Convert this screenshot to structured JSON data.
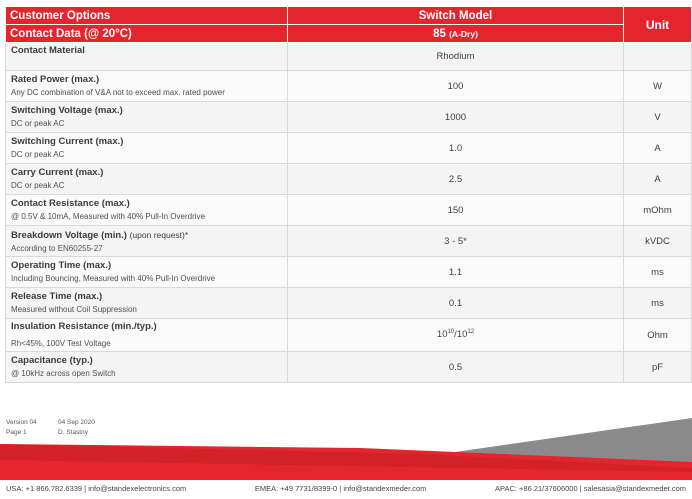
{
  "header": {
    "customer_options": "Customer Options",
    "switch_model": "Switch Model",
    "unit": "Unit",
    "contact_data": "Contact Data (@ 20°C)",
    "model_number": "85",
    "model_type": "(A-Dry)"
  },
  "rows": [
    {
      "name": "Contact Material",
      "note": "",
      "desc": "",
      "value": "Rhodium",
      "unit": ""
    },
    {
      "name": "Rated Power (max.)",
      "note": "",
      "desc": "Any DC combination of V&A not to exceed max. rated power",
      "value": "100",
      "unit": "W"
    },
    {
      "name": "Switching Voltage (max.)",
      "note": "",
      "desc": "DC or peak AC",
      "value": "1000",
      "unit": "V"
    },
    {
      "name": "Switching Current (max.)",
      "note": "",
      "desc": "DC or peak AC",
      "value": "1.0",
      "unit": "A"
    },
    {
      "name": "Carry Current (max.)",
      "note": "",
      "desc": "DC or peak AC",
      "value": "2.5",
      "unit": "A"
    },
    {
      "name": "Contact Resistance (max.)",
      "note": "",
      "desc": "@ 0.5V & 10mA, Measured with 40% Pull-In Overdrive",
      "value": "150",
      "unit": "mOhm"
    },
    {
      "name": "Breakdown Voltage (min.)",
      "note": "(upon request)*",
      "desc": "According to EN60255-27",
      "value": "3 - 5*",
      "unit": "kVDC"
    },
    {
      "name": "Operating Time (max.)",
      "note": "",
      "desc": "Including Bouncing, Measured with 40% Pull-In Overdrive",
      "value": "1.1",
      "unit": "ms"
    },
    {
      "name": "Release Time (max.)",
      "note": "",
      "desc": "Measured without Coil Suppression",
      "value": "0.1",
      "unit": "ms"
    },
    {
      "name": "Insulation Resistance (min./typ.)",
      "note": "",
      "desc": "Rh<45%, 100V Test Voltage",
      "value_base1": "10",
      "value_exp1": "10",
      "value_sep": "/",
      "value_base2": "10",
      "value_exp2": "12",
      "unit": "Ohm"
    },
    {
      "name": "Capacitance (typ.)",
      "note": "",
      "desc": "@ 10kHz across open Switch",
      "value": "0.5",
      "unit": "pF"
    }
  ],
  "footer": {
    "version_label": "Version 04",
    "version_date": "04 Sep 2020",
    "page_label": "Page 1",
    "author": "D. Stastny",
    "usa": "USA: +1 866.782.6339 | info@standexelectronics.com",
    "emea": "EMEA: +49 7731/8399-0 | info@standexmeder.com",
    "apac": "APAC: +86 21/37606000 | salesasia@standexmeder.com"
  },
  "colors": {
    "accent": "#e3262d",
    "swoosh_gray": "#7a7a7a"
  }
}
